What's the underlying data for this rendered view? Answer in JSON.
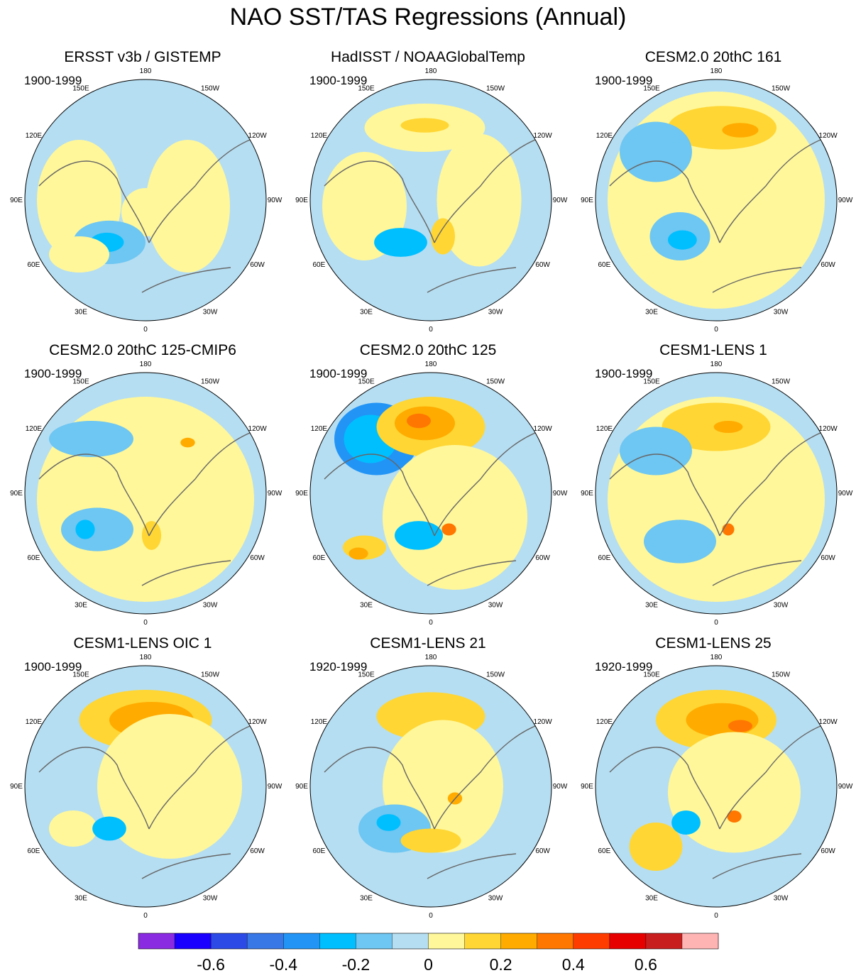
{
  "title": "NAO SST/TAS Regressions (Annual)",
  "chart_data": {
    "type": "heatmap",
    "projection": "north-polar-stereographic",
    "variable": "NAO SST/TAS regression (annual)",
    "longitude_labels": [
      "180",
      "150W",
      "120W",
      "90W",
      "60W",
      "30W",
      "0",
      "30E",
      "60E",
      "90E",
      "120E",
      "150E"
    ],
    "panels": [
      {
        "title": "ERSST v3b / GISTEMP",
        "years": "1900-1999"
      },
      {
        "title": "HadISST / NOAAGlobalTemp",
        "years": "1900-1999"
      },
      {
        "title": "CESM2.0 20thC 161",
        "years": "1900-1999"
      },
      {
        "title": "CESM2.0 20thC 125-CMIP6",
        "years": "1900-1999"
      },
      {
        "title": "CESM2.0 20thC 125",
        "years": "1900-1999"
      },
      {
        "title": "CESM1-LENS 1",
        "years": "1900-1999"
      },
      {
        "title": "CESM1-LENS OIC 1",
        "years": "1900-1999"
      },
      {
        "title": "CESM1-LENS 21",
        "years": "1920-1999"
      },
      {
        "title": "CESM1-LENS 25",
        "years": "1920-1999"
      }
    ],
    "colorbar": {
      "colors": [
        "#8a2be2",
        "#1a00ff",
        "#2c4be6",
        "#3877e6",
        "#2294f6",
        "#00bfff",
        "#6ec6f2",
        "#b5def2",
        "#fff79a",
        "#ffd633",
        "#ffab00",
        "#ff7700",
        "#ff3c00",
        "#e60000",
        "#c81e1e",
        "#ffb4b4"
      ],
      "tick_labels": [
        "-0.6",
        "-0.4",
        "-0.2",
        "0",
        "0.2",
        "0.4",
        "0.6"
      ],
      "tick_values": [
        -0.6,
        -0.4,
        -0.2,
        0,
        0.2,
        0.4,
        0.6
      ],
      "levels": [
        -0.7,
        -0.6,
        -0.5,
        -0.4,
        -0.3,
        -0.2,
        -0.1,
        0,
        0.1,
        0.2,
        0.3,
        0.4,
        0.5,
        0.6,
        0.7
      ]
    }
  }
}
